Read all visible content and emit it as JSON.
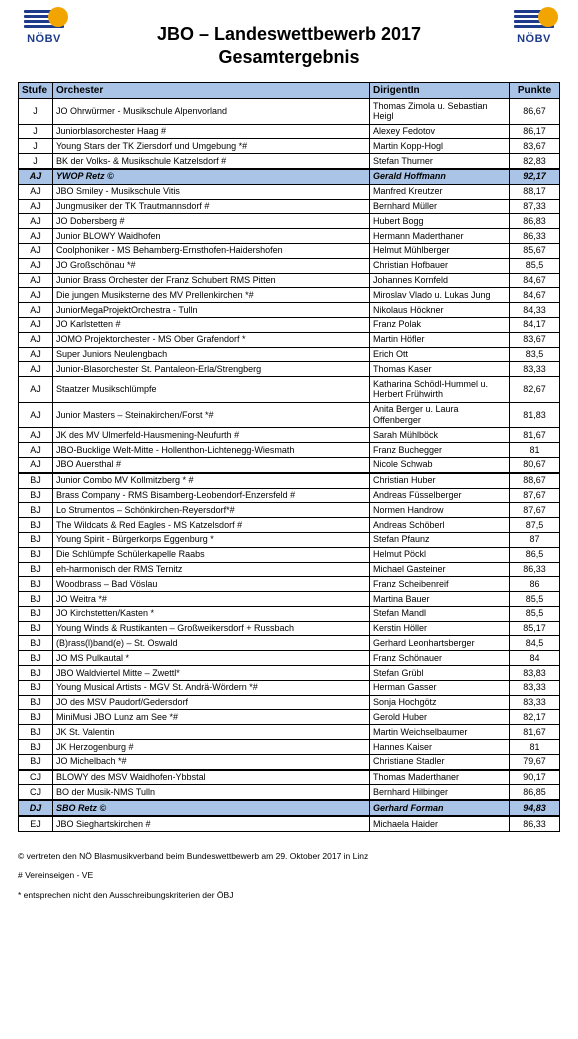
{
  "header": {
    "logo_text": "NÖBV",
    "title_main": "JBO – Landeswettbewerb 2017",
    "title_sub": "Gesamtergebnis"
  },
  "table": {
    "columns": [
      "Stufe",
      "Orchester",
      "DirigentIn",
      "Punkte"
    ],
    "rows": [
      {
        "stufe": "J",
        "orch": "JO Ohrwürmer - Musikschule Alpenvorland",
        "dir": "Thomas Zimola u. Sebastian Heigl",
        "punkte": "86,67"
      },
      {
        "stufe": "J",
        "orch": "Juniorblasorchester Haag #",
        "dir": "Alexey Fedotov",
        "punkte": "86,17"
      },
      {
        "stufe": "J",
        "orch": "Young Stars der TK Ziersdorf und Umgebung *#",
        "dir": "Martin Kopp-Hogl",
        "punkte": "83,67"
      },
      {
        "stufe": "J",
        "orch": "BK der Volks- & Musikschule Katzelsdorf #",
        "dir": "Stefan Thurner",
        "punkte": "82,83"
      },
      {
        "stufe": "AJ",
        "orch": "YWOP Retz ©",
        "dir": "Gerald Hoffmann",
        "punkte": "92,17",
        "hl": true,
        "sep": true
      },
      {
        "stufe": "AJ",
        "orch": "JBO Smiley - Musikschule Vitis",
        "dir": "Manfred Kreutzer",
        "punkte": "88,17"
      },
      {
        "stufe": "AJ",
        "orch": "Jungmusiker der TK Trautmannsdorf #",
        "dir": "Bernhard Müller",
        "punkte": "87,33"
      },
      {
        "stufe": "AJ",
        "orch": "JO Dobersberg #",
        "dir": "Hubert Bogg",
        "punkte": "86,83"
      },
      {
        "stufe": "AJ",
        "orch": "Junior BLOWY Waidhofen",
        "dir": "Hermann Maderthaner",
        "punkte": "86,33"
      },
      {
        "stufe": "AJ",
        "orch": "Coolphoniker - MS Behamberg-Ernsthofen-Haidershofen",
        "dir": "Helmut Mühlberger",
        "punkte": "85,67"
      },
      {
        "stufe": "AJ",
        "orch": "JO Großschönau *#",
        "dir": "Christian Hofbauer",
        "punkte": "85,5"
      },
      {
        "stufe": "AJ",
        "orch": "Junior Brass Orchester der Franz Schubert RMS Pitten",
        "dir": "Johannes Kornfeld",
        "punkte": "84,67"
      },
      {
        "stufe": "AJ",
        "orch": "Die jungen Musiksterne des MV Prellenkirchen *#",
        "dir": "Miroslav Vlado u. Lukas Jung",
        "punkte": "84,67"
      },
      {
        "stufe": "AJ",
        "orch": "JuniorMegaProjektOrchestra - Tulln",
        "dir": "Nikolaus Höckner",
        "punkte": "84,33"
      },
      {
        "stufe": "AJ",
        "orch": "JO Karlstetten #",
        "dir": "Franz Polak",
        "punkte": "84,17"
      },
      {
        "stufe": "AJ",
        "orch": "JOMO Projektorchester - MS Ober Grafendorf *",
        "dir": "Martin Höfler",
        "punkte": "83,67"
      },
      {
        "stufe": "AJ",
        "orch": "Super Juniors Neulengbach",
        "dir": "Erich Ott",
        "punkte": "83,5"
      },
      {
        "stufe": "AJ",
        "orch": "Junior-Blasorchester St. Pantaleon-Erla/Strengberg",
        "dir": "Thomas Kaser",
        "punkte": "83,33"
      },
      {
        "stufe": "AJ",
        "orch": "Staatzer Musikschlümpfe",
        "dir": "Katharina Schödl-Hummel u. Herbert Frühwirth",
        "punkte": "82,67"
      },
      {
        "stufe": "AJ",
        "orch": "Junior Masters – Steinakirchen/Forst *#",
        "dir": "Anita Berger u. Laura Offenberger",
        "punkte": "81,83"
      },
      {
        "stufe": "AJ",
        "orch": "JK des MV Ulmerfeld-Hausmening-Neufurth #",
        "dir": "Sarah Mühlböck",
        "punkte": "81,67"
      },
      {
        "stufe": "AJ",
        "orch": "JBO-Bucklige Welt-Mitte - Hollenthon-Lichtenegg-Wiesmath",
        "dir": "Franz Buchegger",
        "punkte": "81"
      },
      {
        "stufe": "AJ",
        "orch": "JBO Auersthal #",
        "dir": "Nicole Schwab",
        "punkte": "80,67"
      },
      {
        "stufe": "BJ",
        "orch": "Junior Combo MV Kollmitzberg * #",
        "dir": "Christian Huber",
        "punkte": "88,67",
        "sep": true
      },
      {
        "stufe": "BJ",
        "orch": "Brass Company - RMS Bisamberg-Leobendorf-Enzersfeld #",
        "dir": "Andreas Füsselberger",
        "punkte": "87,67"
      },
      {
        "stufe": "BJ",
        "orch": "Lo Strumentos – Schönkirchen-Reyersdorf*#",
        "dir": "Normen Handrow",
        "punkte": "87,67"
      },
      {
        "stufe": "BJ",
        "orch": "The Wildcats & Red Eagles - MS Katzelsdorf #",
        "dir": "Andreas Schöberl",
        "punkte": "87,5"
      },
      {
        "stufe": "BJ",
        "orch": "Young Spirit - Bürgerkorps Eggenburg *",
        "dir": "Stefan Pfaunz",
        "punkte": "87"
      },
      {
        "stufe": "BJ",
        "orch": "Die Schlümpfe Schülerkapelle Raabs",
        "dir": "Helmut Pöckl",
        "punkte": "86,5"
      },
      {
        "stufe": "BJ",
        "orch": "eh-harmonisch der RMS Ternitz",
        "dir": "Michael Gasteiner",
        "punkte": "86,33"
      },
      {
        "stufe": "BJ",
        "orch": "Woodbrass – Bad Vöslau",
        "dir": "Franz Scheibenreif",
        "punkte": "86"
      },
      {
        "stufe": "BJ",
        "orch": "JO Weitra *#",
        "dir": "Martina Bauer",
        "punkte": "85,5"
      },
      {
        "stufe": "BJ",
        "orch": "JO Kirchstetten/Kasten *",
        "dir": "Stefan Mandl",
        "punkte": "85,5"
      },
      {
        "stufe": "BJ",
        "orch": "Young Winds & Rustikanten – Großweikersdorf + Russbach",
        "dir": "Kerstin Höller",
        "punkte": "85,17"
      },
      {
        "stufe": "BJ",
        "orch": "(B)rass(l)band(e) – St. Oswald",
        "dir": "Gerhard Leonhartsberger",
        "punkte": "84,5"
      },
      {
        "stufe": "BJ",
        "orch": "JO MS Pulkautal *",
        "dir": "Franz Schönauer",
        "punkte": "84"
      },
      {
        "stufe": "BJ",
        "orch": "JBO Waldviertel Mitte – Zwettl*",
        "dir": "Stefan Grübl",
        "punkte": "83,83"
      },
      {
        "stufe": "BJ",
        "orch": "Young Musical Artists - MGV St. Andrä-Wördern *#",
        "dir": "Herman Gasser",
        "punkte": "83,33"
      },
      {
        "stufe": "BJ",
        "orch": "JO des MSV Paudorf/Gedersdorf",
        "dir": "Sonja Hochgötz",
        "punkte": "83,33"
      },
      {
        "stufe": "BJ",
        "orch": "MiniMusi JBO Lunz am See *#",
        "dir": "Gerold Huber",
        "punkte": "82,17"
      },
      {
        "stufe": "BJ",
        "orch": "JK St. Valentin",
        "dir": "Martin Weichselbaumer",
        "punkte": "81,67"
      },
      {
        "stufe": "BJ",
        "orch": "JK Herzogenburg #",
        "dir": "Hannes Kaiser",
        "punkte": "81"
      },
      {
        "stufe": "BJ",
        "orch": "JO Michelbach *#",
        "dir": "Christiane Stadler",
        "punkte": "79,67"
      },
      {
        "stufe": "CJ",
        "orch": "BLOWY des MSV Waidhofen-Ybbstal",
        "dir": "Thomas Maderthaner",
        "punkte": "90,17",
        "sep": true
      },
      {
        "stufe": "CJ",
        "orch": "BO der Musik-NMS Tulln",
        "dir": "Bernhard Hilbinger",
        "punkte": "86,85"
      },
      {
        "stufe": "DJ",
        "orch": "SBO Retz ©",
        "dir": "Gerhard Forman",
        "punkte": "94,83",
        "hl": true,
        "sep": true
      },
      {
        "stufe": "EJ",
        "orch": "JBO Sieghartskirchen #",
        "dir": "Michaela Haider",
        "punkte": "86,33",
        "sep": true
      }
    ]
  },
  "footnotes": [
    "© vertreten den NÖ Blasmusikverband beim Bundeswettbewerb am 29. Oktober 2017 in Linz",
    "# Vereinseigen - VE",
    "* entsprechen nicht den Ausschreibungskriterien der ÖBJ"
  ]
}
